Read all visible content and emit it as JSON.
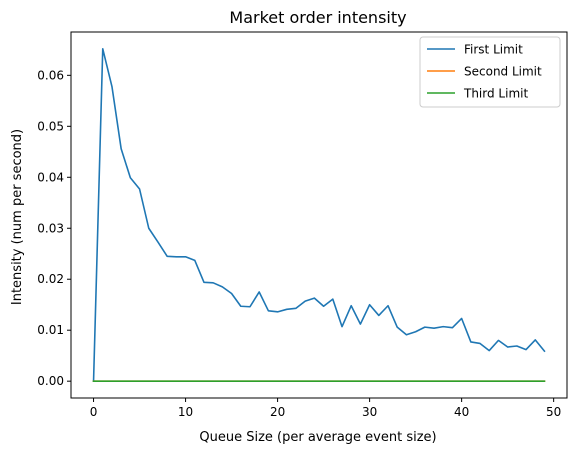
{
  "chart_data": {
    "type": "line",
    "title": "Market order intensity",
    "xlabel": "Queue Size (per average event size)",
    "ylabel": "Intensity (num per second)",
    "xlim": [
      -2.45,
      51.45
    ],
    "ylim": [
      -0.0033,
      0.0685
    ],
    "xticks": [
      0,
      10,
      20,
      30,
      40,
      50
    ],
    "yticks": [
      0.0,
      0.01,
      0.02,
      0.03,
      0.04,
      0.05,
      0.06
    ],
    "xtick_labels": [
      "0",
      "10",
      "20",
      "30",
      "40",
      "50"
    ],
    "ytick_labels": [
      "0.00",
      "0.01",
      "0.02",
      "0.03",
      "0.04",
      "0.05",
      "0.06"
    ],
    "grid": false,
    "legend_position": "top-right",
    "x": [
      0,
      1,
      2,
      3,
      4,
      5,
      6,
      7,
      8,
      9,
      10,
      11,
      12,
      13,
      14,
      15,
      16,
      17,
      18,
      19,
      20,
      21,
      22,
      23,
      24,
      25,
      26,
      27,
      28,
      29,
      30,
      31,
      32,
      33,
      34,
      35,
      36,
      37,
      38,
      39,
      40,
      41,
      42,
      43,
      44,
      45,
      46,
      47,
      48,
      49
    ],
    "series": [
      {
        "name": "First Limit",
        "color": "#1f77b4",
        "values": [
          0.0,
          0.0652,
          0.0578,
          0.0456,
          0.0399,
          0.0377,
          0.03,
          0.0273,
          0.0245,
          0.0244,
          0.0244,
          0.0237,
          0.0194,
          0.0193,
          0.0185,
          0.0172,
          0.0147,
          0.0146,
          0.0175,
          0.0138,
          0.0136,
          0.0141,
          0.0143,
          0.0157,
          0.0163,
          0.0147,
          0.0161,
          0.0107,
          0.0148,
          0.0112,
          0.015,
          0.0129,
          0.0148,
          0.0106,
          0.0091,
          0.0097,
          0.0106,
          0.0104,
          0.0107,
          0.0105,
          0.0123,
          0.0077,
          0.0074,
          0.006,
          0.008,
          0.0067,
          0.0069,
          0.0062,
          0.0081,
          0.0059
        ]
      },
      {
        "name": "Second Limit",
        "color": "#ff7f0e",
        "values": [
          0,
          0,
          0,
          0,
          0,
          0,
          0,
          0,
          0,
          0,
          0,
          0,
          0,
          0,
          0,
          0,
          0,
          0,
          0,
          0,
          0,
          0,
          0,
          0,
          0,
          0,
          0,
          0,
          0,
          0,
          0,
          0,
          0,
          0,
          0,
          0,
          0,
          0,
          0,
          0,
          0,
          0,
          0,
          0,
          0,
          0,
          0,
          0,
          0,
          0
        ]
      },
      {
        "name": "Third Limit",
        "color": "#2ca02c",
        "values": [
          0,
          0,
          0,
          0,
          0,
          0,
          0,
          0,
          0,
          0,
          0,
          0,
          0,
          0,
          0,
          0,
          0,
          0,
          0,
          0,
          0,
          0,
          0,
          0,
          0,
          0,
          0,
          0,
          0,
          0,
          0,
          0,
          0,
          0,
          0,
          0,
          0,
          0,
          0,
          0,
          0,
          0,
          0,
          0,
          0,
          0,
          0,
          0,
          0,
          0
        ]
      }
    ]
  }
}
